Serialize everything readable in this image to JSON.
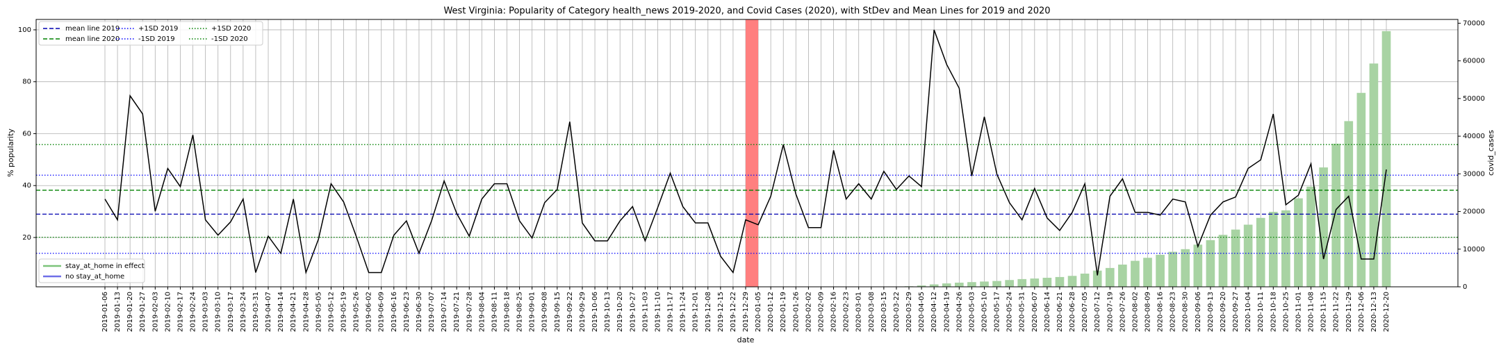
{
  "chart_data": {
    "type": "line",
    "title": "West Virginia: Popularity of Category health_news 2019-2020, and Covid Cases (2020), with StDev and Mean Lines for 2019 and 2020",
    "xlabel": "date",
    "ylabel": "% popularity",
    "y2label": "covid_cases",
    "categories": [
      "2019-01-06",
      "2019-01-13",
      "2019-01-20",
      "2019-01-27",
      "2019-02-03",
      "2019-02-10",
      "2019-02-17",
      "2019-02-24",
      "2019-03-03",
      "2019-03-10",
      "2019-03-17",
      "2019-03-24",
      "2019-03-31",
      "2019-04-07",
      "2019-04-14",
      "2019-04-21",
      "2019-04-28",
      "2019-05-05",
      "2019-05-12",
      "2019-05-19",
      "2019-05-26",
      "2019-06-02",
      "2019-06-09",
      "2019-06-16",
      "2019-06-23",
      "2019-06-30",
      "2019-07-07",
      "2019-07-14",
      "2019-07-21",
      "2019-07-28",
      "2019-08-04",
      "2019-08-11",
      "2019-08-18",
      "2019-08-25",
      "2019-09-01",
      "2019-09-08",
      "2019-09-15",
      "2019-09-22",
      "2019-09-29",
      "2019-10-06",
      "2019-10-13",
      "2019-10-20",
      "2019-10-27",
      "2019-11-03",
      "2019-11-10",
      "2019-11-17",
      "2019-11-24",
      "2019-12-01",
      "2019-12-08",
      "2019-12-15",
      "2019-12-22",
      "2019-12-29",
      "2020-01-05",
      "2020-01-12",
      "2020-01-19",
      "2020-01-26",
      "2020-02-02",
      "2020-02-09",
      "2020-02-16",
      "2020-02-23",
      "2020-03-01",
      "2020-03-08",
      "2020-03-15",
      "2020-03-22",
      "2020-03-29",
      "2020-04-05",
      "2020-04-12",
      "2020-04-19",
      "2020-04-26",
      "2020-05-03",
      "2020-05-10",
      "2020-05-17",
      "2020-05-24",
      "2020-05-31",
      "2020-06-07",
      "2020-06-14",
      "2020-06-21",
      "2020-06-28",
      "2020-07-05",
      "2020-07-12",
      "2020-07-19",
      "2020-07-26",
      "2020-08-02",
      "2020-08-09",
      "2020-08-16",
      "2020-08-23",
      "2020-08-30",
      "2020-09-06",
      "2020-09-13",
      "2020-09-20",
      "2020-09-27",
      "2020-10-04",
      "2020-10-11",
      "2020-10-18",
      "2020-10-25",
      "2020-11-01",
      "2020-11-08",
      "2020-11-15",
      "2020-11-22",
      "2020-11-29",
      "2020-12-06",
      "2020-12-13",
      "2020-12-20"
    ],
    "series": [
      {
        "color": "#000000",
        "values": [
          34.8,
          26.8,
          74.6,
          67.6,
          30.1,
          46.6,
          39.6,
          59.5,
          26.8,
          20.9,
          26.0,
          34.8,
          6.5,
          20.5,
          13.9,
          34.8,
          6.5,
          19.4,
          40.7,
          33.7,
          20.5,
          6.5,
          6.5,
          20.9,
          26.4,
          13.9,
          26.4,
          41.8,
          29.3,
          20.5,
          34.8,
          40.7,
          40.7,
          26.4,
          19.8,
          33.4,
          38.5,
          64.6,
          25.6,
          18.7,
          18.7,
          26.4,
          31.9,
          18.7,
          31.5,
          44.8,
          31.9,
          25.6,
          25.6,
          12.8,
          6.5,
          26.8,
          24.9,
          35.9,
          55.8,
          36.7,
          23.8,
          23.8,
          53.6,
          34.8,
          40.7,
          34.8,
          45.5,
          38.5,
          43.7,
          39.6,
          100,
          86.7,
          77.5,
          43.7,
          66.5,
          44.4,
          33.4,
          26.8,
          38.9,
          27.5,
          22.7,
          29.7,
          40.7,
          5.4,
          35.9,
          42.6,
          29.7,
          29.7,
          28.6,
          34.8,
          33.7,
          16.5,
          28.6,
          33.7,
          35.6,
          46.6,
          49.9,
          67.6,
          32.6,
          36.3,
          48.4,
          11.7,
          30.8,
          35.9,
          11.7,
          11.7,
          46.2
        ]
      },
      {
        "type": "bar",
        "axis": "y2",
        "color": "#a8d3a3",
        "values": [
          null,
          null,
          null,
          null,
          null,
          null,
          null,
          null,
          null,
          null,
          null,
          null,
          null,
          null,
          null,
          null,
          null,
          null,
          null,
          null,
          null,
          null,
          null,
          null,
          null,
          null,
          null,
          null,
          null,
          null,
          null,
          null,
          null,
          null,
          null,
          null,
          null,
          null,
          null,
          null,
          null,
          null,
          null,
          null,
          null,
          null,
          null,
          null,
          null,
          null,
          null,
          null,
          null,
          null,
          null,
          null,
          null,
          null,
          null,
          null,
          null,
          null,
          null,
          20,
          145,
          350,
          640,
          900,
          1100,
          1250,
          1400,
          1550,
          1800,
          2050,
          2200,
          2400,
          2600,
          2900,
          3500,
          4300,
          5000,
          5900,
          6900,
          7700,
          8500,
          9300,
          10000,
          11200,
          12400,
          13800,
          15200,
          16500,
          18300,
          19900,
          20300,
          23500,
          26600,
          31700,
          38000,
          44000,
          51500,
          59300,
          67900
        ]
      }
    ],
    "hlines": [
      {
        "name": "mean line 2019",
        "color": "#0000b0",
        "style": "dashed",
        "value": 29.0
      },
      {
        "name": "mean line 2020",
        "color": "#008000",
        "style": "dashed",
        "value": 38.2
      },
      {
        "name": "+1SD 2019",
        "color": "#0000ff",
        "style": "dotted",
        "value": 44.0
      },
      {
        "name": "-1SD 2019",
        "color": "#0000ff",
        "style": "dotted",
        "value": 13.9
      },
      {
        "name": "+1SD 2020",
        "color": "#008000",
        "style": "dotted",
        "value": 55.8
      },
      {
        "name": "-1SD 2020",
        "color": "#008000",
        "style": "dotted",
        "value": 20.1
      }
    ],
    "legend2": [
      {
        "name": "stay_at_home in effect",
        "color": "#7cc47a"
      },
      {
        "name": "no stay_at_home",
        "color": "#6f6fe8"
      }
    ],
    "highlight": {
      "from": "2019-12-29",
      "to": "2020-01-05",
      "color": "#ff7f7f"
    },
    "ylim": [
      1,
      104
    ],
    "yticks": [
      20,
      40,
      60,
      80,
      100
    ],
    "y2lim": [
      0,
      71000
    ],
    "y2ticks": [
      0,
      10000,
      20000,
      30000,
      40000,
      50000,
      60000,
      70000
    ],
    "grid": true
  }
}
